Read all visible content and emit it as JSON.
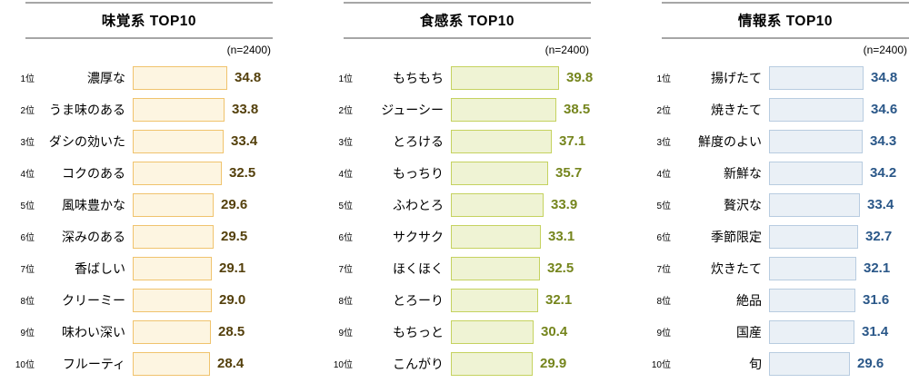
{
  "chart_data": [
    {
      "type": "bar",
      "orientation": "horizontal",
      "title": "味覚系 TOP10",
      "sample_label": "(n=2400)",
      "xlim": [
        0,
        45
      ],
      "grid": false,
      "value_format": "0.0",
      "colors": {
        "bar_fill": "#fdf5e1",
        "bar_border": "#f0c36d",
        "value_text": "#54400c"
      },
      "items": [
        {
          "rank": "1位",
          "label": "濃厚な",
          "value": 34.8
        },
        {
          "rank": "2位",
          "label": "うま味のある",
          "value": 33.8
        },
        {
          "rank": "3位",
          "label": "ダシの効いた",
          "value": 33.4
        },
        {
          "rank": "4位",
          "label": "コクのある",
          "value": 32.5
        },
        {
          "rank": "5位",
          "label": "風味豊かな",
          "value": 29.6
        },
        {
          "rank": "6位",
          "label": "深みのある",
          "value": 29.5
        },
        {
          "rank": "7位",
          "label": "香ばしい",
          "value": 29.1
        },
        {
          "rank": "8位",
          "label": "クリーミー",
          "value": 29.0
        },
        {
          "rank": "9位",
          "label": "味わい深い",
          "value": 28.5
        },
        {
          "rank": "10位",
          "label": "フルーティ",
          "value": 28.4
        }
      ]
    },
    {
      "type": "bar",
      "orientation": "horizontal",
      "title": "食感系 TOP10",
      "sample_label": "(n=2400)",
      "xlim": [
        0,
        45
      ],
      "grid": false,
      "value_format": "0.0",
      "colors": {
        "bar_fill": "#eff3d4",
        "bar_border": "#c5d25f",
        "value_text": "#75851d"
      },
      "items": [
        {
          "rank": "1位",
          "label": "もちもち",
          "value": 39.8
        },
        {
          "rank": "2位",
          "label": "ジューシー",
          "value": 38.5
        },
        {
          "rank": "3位",
          "label": "とろける",
          "value": 37.1
        },
        {
          "rank": "4位",
          "label": "もっちり",
          "value": 35.7
        },
        {
          "rank": "5位",
          "label": "ふわとろ",
          "value": 33.9
        },
        {
          "rank": "6位",
          "label": "サクサク",
          "value": 33.1
        },
        {
          "rank": "7位",
          "label": "ほくほく",
          "value": 32.5
        },
        {
          "rank": "8位",
          "label": "とろーり",
          "value": 32.1
        },
        {
          "rank": "9位",
          "label": "もちっと",
          "value": 30.4
        },
        {
          "rank": "10位",
          "label": "こんがり",
          "value": 29.9
        }
      ]
    },
    {
      "type": "bar",
      "orientation": "horizontal",
      "title": "情報系 TOP10",
      "sample_label": "(n=2400)",
      "xlim": [
        0,
        45
      ],
      "grid": false,
      "value_format": "0.0",
      "colors": {
        "bar_fill": "#eaf0f6",
        "bar_border": "#b8cce0",
        "value_text": "#2a5788"
      },
      "items": [
        {
          "rank": "1位",
          "label": "揚げたて",
          "value": 34.8
        },
        {
          "rank": "2位",
          "label": "焼きたて",
          "value": 34.6
        },
        {
          "rank": "3位",
          "label": "鮮度のよい",
          "value": 34.3
        },
        {
          "rank": "4位",
          "label": "新鮮な",
          "value": 34.2
        },
        {
          "rank": "5位",
          "label": "贅沢な",
          "value": 33.4
        },
        {
          "rank": "6位",
          "label": "季節限定",
          "value": 32.7
        },
        {
          "rank": "7位",
          "label": "炊きたて",
          "value": 32.1
        },
        {
          "rank": "8位",
          "label": "絶品",
          "value": 31.6
        },
        {
          "rank": "9位",
          "label": "国産",
          "value": 31.4
        },
        {
          "rank": "10位",
          "label": "旬",
          "value": 29.6
        }
      ]
    }
  ]
}
